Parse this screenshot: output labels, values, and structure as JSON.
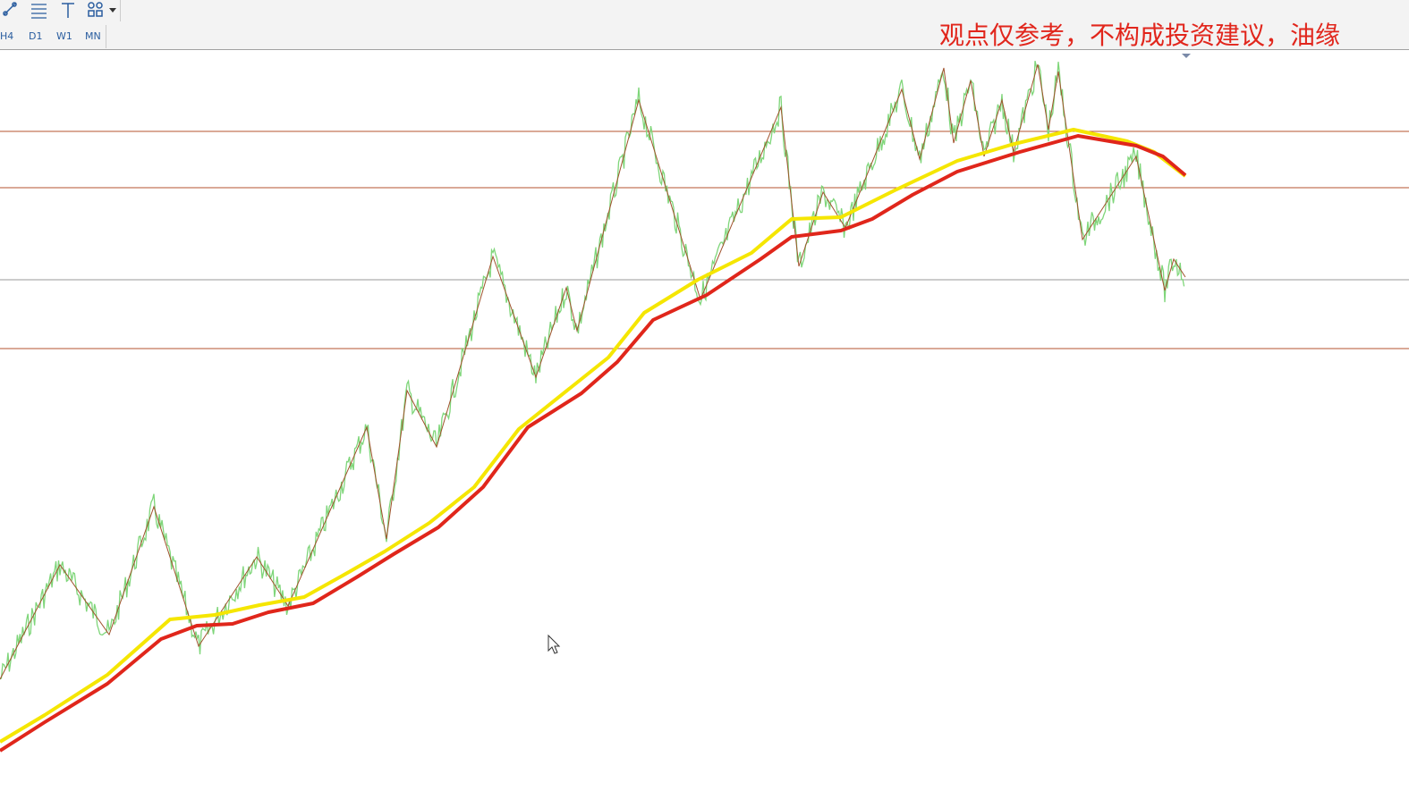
{
  "toolbar": {
    "timeframes": [
      "H4",
      "D1",
      "W1",
      "MN"
    ]
  },
  "watermark": "观点仅参考，不构成投资建议，油缘"
}
